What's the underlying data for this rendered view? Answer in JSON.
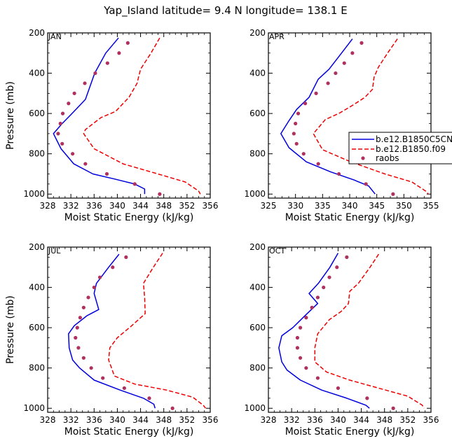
{
  "figure_title": "Yap_Island  latitude= 9.4 N longitude= 138.1 E",
  "colors": {
    "model_c5": "#0000dd",
    "model_f09": "#ee0000",
    "raobs": "#b03060",
    "frame": "#000000"
  },
  "legend": {
    "entries": [
      "b.e12.B1850C5CN",
      "b.e12.B1850.f09",
      "raobs"
    ],
    "line_styles": [
      "solid",
      "dashed",
      "dot"
    ]
  },
  "chart_data": [
    {
      "type": "line",
      "panel": "JAN",
      "title": "JAN",
      "xlabel": "Moist Static Energy (kJ/kg)",
      "ylabel": "Pressure (mb)",
      "xlim": [
        328,
        356
      ],
      "ylim": [
        1020,
        200
      ],
      "xticks": [
        328,
        332,
        336,
        340,
        344,
        348,
        352,
        356
      ],
      "xtick_labels": [
        "328",
        "332",
        "336",
        "340",
        "344",
        "348",
        "352",
        "356"
      ],
      "yticks": [
        200,
        400,
        600,
        800,
        1000
      ],
      "ytick_labels": [
        "200",
        "400",
        "600",
        "800",
        "1000"
      ],
      "series": [
        {
          "name": "b.e12.B1850C5CN",
          "style": "solid",
          "x": [
            340.2,
            338.0,
            336.1,
            334.5,
            332.2,
            330.5,
            329.0,
            330.3,
            332.5,
            335.8,
            339.5,
            343.0,
            344.7,
            344.7
          ],
          "y": [
            225,
            300,
            400,
            530,
            600,
            650,
            700,
            775,
            850,
            900,
            925,
            950,
            975,
            1000
          ]
        },
        {
          "name": "b.e12.B1850.f09",
          "style": "dashed",
          "x": [
            347.3,
            345.8,
            344.0,
            343.4,
            342.0,
            339.7,
            337.2,
            334.5,
            334.2,
            336.0,
            341.0,
            347.0,
            351.7,
            354.0,
            354.3
          ],
          "y": [
            225,
            300,
            380,
            450,
            520,
            590,
            620,
            680,
            700,
            775,
            850,
            900,
            940,
            985,
            1000
          ]
        },
        {
          "name": "raobs",
          "style": "dot",
          "x": [
            341.8,
            340.3,
            338.3,
            336.2,
            334.4,
            332.6,
            331.6,
            330.6,
            330.2,
            329.8,
            330.5,
            332.3,
            334.5,
            338.2,
            343.0,
            347.3
          ],
          "y": [
            250,
            300,
            350,
            400,
            450,
            500,
            550,
            600,
            650,
            700,
            750,
            800,
            850,
            900,
            950,
            1000
          ]
        }
      ]
    },
    {
      "type": "line",
      "panel": "APR",
      "title": "APR",
      "xlabel": "Moist Static Energy (kJ/kg)",
      "ylabel": "",
      "xlim": [
        325,
        355
      ],
      "ylim": [
        1020,
        200
      ],
      "xticks": [
        325,
        330,
        335,
        340,
        345,
        350,
        355
      ],
      "xtick_labels": [
        "325",
        "330",
        "335",
        "340",
        "345",
        "350",
        "355"
      ],
      "yticks": [
        200,
        400,
        600,
        800,
        1000
      ],
      "ytick_labels": [
        "200",
        "400",
        "600",
        "800",
        "1000"
      ],
      "series": [
        {
          "name": "b.e12.B1850C5CN",
          "style": "solid",
          "x": [
            340.5,
            338.5,
            336.2,
            334.2,
            332.5,
            330.2,
            328.7,
            327.3,
            328.8,
            332.0,
            336.5,
            340.8,
            343.5,
            344.7
          ],
          "y": [
            230,
            300,
            380,
            430,
            520,
            580,
            640,
            700,
            770,
            840,
            890,
            930,
            960,
            1000
          ]
        },
        {
          "name": "b.e12.B1850.f09",
          "style": "dashed",
          "x": [
            348.8,
            347.0,
            345.3,
            344.5,
            344.2,
            342.8,
            340.5,
            338.0,
            335.5,
            333.3,
            335.0,
            340.2,
            346.5,
            351.5,
            354.0,
            354.5
          ],
          "y": [
            230,
            300,
            370,
            420,
            480,
            520,
            560,
            600,
            630,
            700,
            780,
            840,
            900,
            940,
            985,
            1000
          ]
        },
        {
          "name": "raobs",
          "style": "dot",
          "x": [
            342.2,
            340.5,
            339.0,
            337.4,
            336.0,
            333.8,
            331.8,
            330.5,
            330.0,
            329.7,
            330.2,
            331.5,
            334.2,
            338.0,
            343.0,
            348.0
          ],
          "y": [
            250,
            300,
            350,
            400,
            450,
            500,
            550,
            600,
            650,
            700,
            750,
            800,
            850,
            900,
            950,
            1000
          ]
        }
      ]
    },
    {
      "type": "line",
      "panel": "JUL",
      "title": "JUL",
      "xlabel": "Moist Static Energy (kJ/kg)",
      "ylabel": "Pressure (mb)",
      "xlim": [
        328,
        356
      ],
      "ylim": [
        1020,
        200
      ],
      "xticks": [
        328,
        332,
        336,
        340,
        344,
        348,
        352,
        356
      ],
      "xtick_labels": [
        "328",
        "332",
        "336",
        "340",
        "344",
        "348",
        "352",
        "356"
      ],
      "yticks": [
        200,
        400,
        600,
        800,
        1000
      ],
      "ytick_labels": [
        "200",
        "400",
        "600",
        "800",
        "1000"
      ],
      "series": [
        {
          "name": "b.e12.B1850C5CN",
          "style": "solid",
          "x": [
            340.3,
            338.5,
            336.4,
            336.0,
            336.8,
            334.8,
            332.6,
            331.6,
            331.7,
            332.3,
            333.5,
            336.0,
            340.5,
            344.5,
            346.3,
            346.5
          ],
          "y": [
            235,
            300,
            380,
            430,
            510,
            540,
            590,
            630,
            700,
            760,
            800,
            860,
            910,
            950,
            980,
            1000
          ]
        },
        {
          "name": "b.e12.B1850.f09",
          "style": "dashed",
          "x": [
            347.8,
            346.2,
            344.5,
            344.7,
            344.8,
            342.5,
            340.0,
            338.7,
            338.5,
            339.5,
            343.0,
            348.5,
            353.0,
            354.8,
            355.2
          ],
          "y": [
            230,
            300,
            380,
            450,
            530,
            590,
            650,
            700,
            760,
            840,
            880,
            910,
            945,
            985,
            1000
          ]
        },
        {
          "name": "raobs",
          "style": "dot",
          "x": [
            341.5,
            339.2,
            337.0,
            336.0,
            335.0,
            334.2,
            333.6,
            333.1,
            332.8,
            333.3,
            334.2,
            335.5,
            337.5,
            341.2,
            345.5,
            349.5
          ],
          "y": [
            250,
            300,
            350,
            400,
            450,
            500,
            550,
            600,
            650,
            700,
            750,
            800,
            850,
            900,
            950,
            1000
          ]
        }
      ]
    },
    {
      "type": "line",
      "panel": "OCT",
      "title": "OCT",
      "xlabel": "Moist Static Energy (kJ/kg)",
      "ylabel": "",
      "xlim": [
        328,
        356
      ],
      "ylim": [
        1020,
        200
      ],
      "xticks": [
        328,
        332,
        336,
        340,
        344,
        348,
        352,
        356
      ],
      "xtick_labels": [
        "328",
        "332",
        "336",
        "340",
        "344",
        "348",
        "352",
        "356"
      ],
      "yticks": [
        200,
        400,
        600,
        800,
        1000
      ],
      "ytick_labels": [
        "200",
        "400",
        "600",
        "800",
        "1000"
      ],
      "series": [
        {
          "name": "b.e12.B1850C5CN",
          "style": "solid",
          "x": [
            340.0,
            338.6,
            336.6,
            335.0,
            336.5,
            334.3,
            332.2,
            330.3,
            329.8,
            330.3,
            331.2,
            333.5,
            337.2,
            341.5,
            344.8,
            345.4
          ],
          "y": [
            230,
            300,
            380,
            430,
            480,
            540,
            600,
            640,
            700,
            770,
            810,
            860,
            910,
            950,
            985,
            1000
          ]
        },
        {
          "name": "b.e12.B1850.f09",
          "style": "dashed",
          "x": [
            347.0,
            345.5,
            343.5,
            342.0,
            341.8,
            340.5,
            338.5,
            336.5,
            336.0,
            336.0,
            338.0,
            342.0,
            347.0,
            352.0,
            354.5,
            354.8
          ],
          "y": [
            235,
            300,
            380,
            420,
            480,
            520,
            560,
            630,
            700,
            770,
            820,
            860,
            900,
            940,
            985,
            1000
          ]
        },
        {
          "name": "raobs",
          "style": "dot",
          "x": [
            341.5,
            339.8,
            338.5,
            337.5,
            336.5,
            335.5,
            334.5,
            333.5,
            333.0,
            333.0,
            333.5,
            334.5,
            336.5,
            340.0,
            345.0,
            349.5
          ],
          "y": [
            250,
            300,
            350,
            400,
            450,
            500,
            550,
            600,
            650,
            700,
            750,
            800,
            850,
            900,
            950,
            1000
          ]
        }
      ]
    }
  ]
}
